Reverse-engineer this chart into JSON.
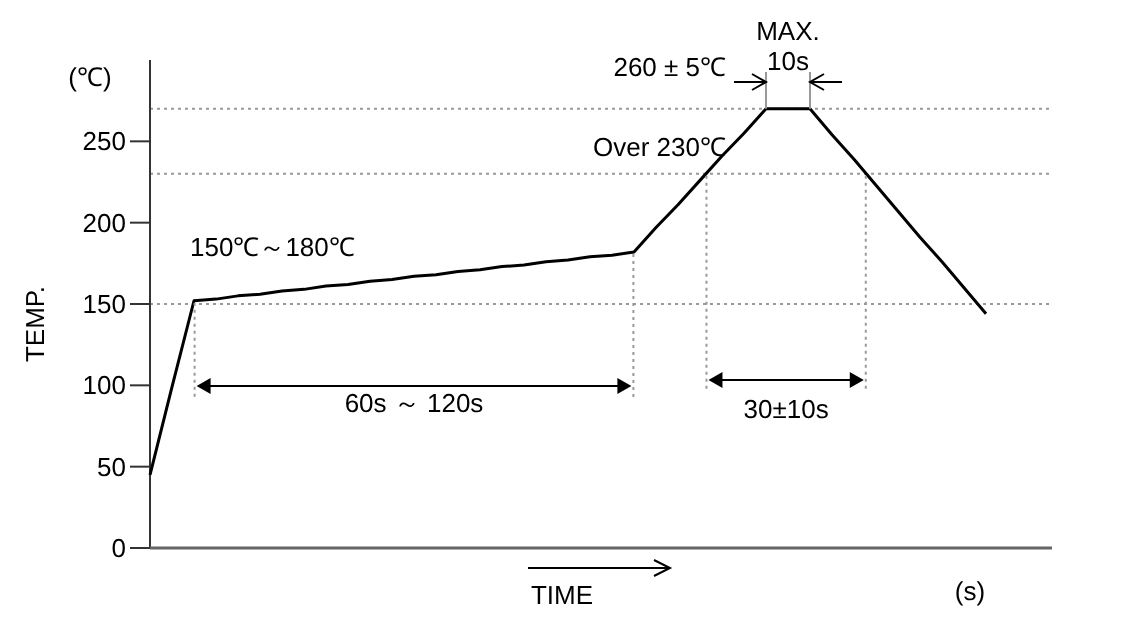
{
  "chart_data": {
    "type": "line",
    "ylabel": "TEMP.",
    "xlabel": "TIME",
    "categories": [
      null,
      null,
      null,
      null,
      null,
      null,
      null,
      null,
      null,
      null,
      null,
      null,
      null,
      null,
      null,
      null,
      null,
      null,
      null,
      null,
      null,
      null,
      null,
      null,
      null,
      null,
      null,
      null,
      null,
      null,
      null,
      null,
      null,
      null,
      null,
      null,
      null,
      null,
      null,
      null,
      null,
      null
    ],
    "series": [
      {
        "color": "#000000",
        "values": [
          45,
          99,
          152,
          153,
          155,
          156,
          158,
          159,
          161,
          162,
          164,
          165,
          167,
          168,
          170,
          171,
          173,
          174,
          176,
          177,
          179,
          180,
          182,
          197,
          211,
          226,
          241,
          255,
          270,
          270,
          270,
          254,
          239,
          223,
          207,
          191,
          176,
          160,
          144,
          null,
          null,
          null
        ]
      }
    ],
    "ylim": [
      0,
      300
    ],
    "yticks": [
      0,
      50,
      100,
      150,
      200,
      250
    ],
    "tick_labels": "y",
    "grid": false,
    "marker": "none",
    "line_style": "solid",
    "ref_lines": [
      {
        "axis": "y",
        "value": 150,
        "color": "#999999",
        "line_style": "dotted"
      },
      {
        "axis": "y",
        "value": 230,
        "color": "#999999",
        "line_style": "dotted"
      },
      {
        "axis": "y",
        "value": 270,
        "color": "#999999",
        "line_style": "dotted"
      }
    ],
    "annotations": [
      "(℃)",
      "150℃～180℃",
      "60s ～ 120s",
      "Over 230℃",
      "260 ± 5℃",
      "MAX.",
      "10s",
      "30±10s",
      "(s)"
    ]
  }
}
